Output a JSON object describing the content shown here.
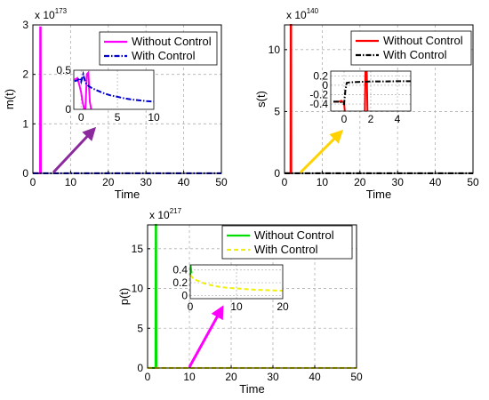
{
  "chart_data": [
    {
      "type": "line",
      "ylabel": "m(t)",
      "xlabel": "Time",
      "exponent": {
        "base": "x 10",
        "power": "173"
      },
      "xlim": [
        0,
        50
      ],
      "ylim": [
        0,
        3
      ],
      "xticks": [
        0,
        10,
        20,
        30,
        40,
        50
      ],
      "yticks": [
        0,
        1,
        2,
        3
      ],
      "grid": true,
      "legend_position": "top-right",
      "series": [
        {
          "name": "Without Control",
          "color": "#ff00ff",
          "style": "solid",
          "x": [
            0,
            1.9,
            1.95,
            2.05,
            2.1
          ],
          "y": [
            0,
            0,
            2.95,
            2.95,
            0
          ]
        },
        {
          "name": "With Control",
          "color": "#0000cc",
          "style": "dashdot",
          "x": [
            0,
            10,
            20,
            30,
            40,
            50
          ],
          "y": [
            0,
            0,
            0,
            0,
            0,
            0
          ]
        }
      ],
      "inset": {
        "xlim": [
          -1,
          10
        ],
        "ylim": [
          0,
          0.5
        ],
        "xticks": [
          0,
          5,
          10
        ],
        "yticks": [
          0,
          0.5
        ],
        "series": [
          {
            "name": "Without Control",
            "color": "#ff00ff",
            "style": "solid",
            "x": [
              -0.9,
              -0.5,
              -0.2,
              0,
              0.2,
              0.4,
              0.6,
              0.8,
              1.0,
              1.2,
              1.4
            ],
            "y": [
              0.38,
              0.4,
              0.3,
              0.22,
              0.1,
              0.01,
              0.01,
              0.45,
              0.47,
              0.1,
              0.0
            ]
          },
          {
            "name": "With Control",
            "color": "#0000cc",
            "style": "dashdot",
            "x": [
              -0.9,
              -0.5,
              -0.2,
              0,
              0.3,
              0.6,
              1,
              1.5,
              2,
              3,
              4,
              5,
              6,
              7,
              8,
              9,
              10
            ],
            "y": [
              0.36,
              0.37,
              0.4,
              0.35,
              0.45,
              0.34,
              0.3,
              0.27,
              0.25,
              0.21,
              0.18,
              0.16,
              0.14,
              0.125,
              0.115,
              0.105,
              0.1
            ]
          }
        ]
      },
      "arrow_color": "#8b2a9c"
    },
    {
      "type": "line",
      "ylabel": "s(t)",
      "xlabel": "Time",
      "exponent": {
        "base": "x 10",
        "power": "140"
      },
      "xlim": [
        0,
        50
      ],
      "ylim": [
        0,
        12
      ],
      "xticks": [
        0,
        10,
        20,
        30,
        40,
        50
      ],
      "yticks": [
        0,
        5,
        10
      ],
      "grid": true,
      "legend_position": "top-right",
      "series": [
        {
          "name": "Without Control",
          "color": "#ff0000",
          "style": "solid",
          "x": [
            0,
            1.6,
            1.65,
            1.75,
            1.8
          ],
          "y": [
            0,
            0,
            12,
            12,
            0
          ]
        },
        {
          "name": "With Control",
          "color": "#000000",
          "style": "dashdot",
          "x": [
            0,
            10,
            20,
            30,
            40,
            50
          ],
          "y": [
            0,
            0,
            0,
            0,
            0,
            0
          ]
        }
      ],
      "inset": {
        "xlim": [
          -1,
          5
        ],
        "ylim": [
          -0.55,
          0.3
        ],
        "xticks": [
          0,
          2,
          4
        ],
        "yticks": [
          0.2,
          0,
          -0.2,
          -0.4
        ],
        "series": [
          {
            "name": "Without Control",
            "color": "#ff0000",
            "style": "solid",
            "x": [
              -0.8,
              -0.4,
              -0.2,
              0,
              0.05
            ],
            "y": [
              -0.35,
              -0.35,
              -0.33,
              -0.38,
              -0.55
            ]
          },
          {
            "name": "Without Control",
            "color": "#ff0000",
            "style": "solid",
            "x": [
              1.55,
              1.6,
              1.65,
              1.7,
              1.75
            ],
            "y": [
              -0.55,
              0.28,
              0.28,
              0.28,
              -0.55
            ]
          },
          {
            "name": "With Control",
            "color": "#000000",
            "style": "dashdot",
            "x": [
              -0.8,
              -0.3,
              0,
              0.1,
              0.2,
              0.4,
              1,
              2,
              3,
              4,
              5
            ],
            "y": [
              -0.35,
              -0.35,
              -0.4,
              -0.1,
              0.05,
              0.06,
              0.07,
              0.08,
              0.08,
              0.085,
              0.085
            ]
          }
        ]
      },
      "arrow_color": "#ffd200"
    },
    {
      "type": "line",
      "ylabel": "p(t)",
      "xlabel": "Time",
      "exponent": {
        "base": "x 10",
        "power": "217"
      },
      "xlim": [
        0,
        50
      ],
      "ylim": [
        0,
        18
      ],
      "xticks": [
        0,
        10,
        20,
        30,
        40,
        50
      ],
      "yticks": [
        0,
        5,
        10,
        15
      ],
      "grid": true,
      "legend_position": "top-right",
      "series": [
        {
          "name": "Without Control",
          "color": "#00e000",
          "style": "solid",
          "x": [
            0,
            1.9,
            1.95,
            2.05,
            2.1
          ],
          "y": [
            0,
            0,
            18,
            18,
            0
          ]
        },
        {
          "name": "With Control",
          "color": "#f0f000",
          "style": "dashed",
          "x": [
            0,
            10,
            20,
            30,
            40,
            50
          ],
          "y": [
            0,
            0,
            0,
            0,
            0,
            0
          ]
        }
      ],
      "inset": {
        "xlim": [
          0,
          20
        ],
        "ylim": [
          -0.05,
          0.48
        ],
        "xticks": [
          0,
          10,
          20
        ],
        "yticks": [
          0,
          0.2,
          0.4
        ],
        "series": [
          {
            "name": "Without Control",
            "color": "#00e000",
            "style": "solid",
            "x": [
              0,
              0.1,
              0.2,
              0.3
            ],
            "y": [
              0.32,
              0.47,
              0.4,
              0.35
            ]
          },
          {
            "name": "With Control",
            "color": "#f0f000",
            "style": "dashed",
            "x": [
              0,
              0.5,
              1,
              2,
              3,
              4,
              6,
              8,
              10,
              12,
              14,
              16,
              18,
              20
            ],
            "y": [
              0.32,
              0.28,
              0.25,
              0.22,
              0.19,
              0.17,
              0.14,
              0.12,
              0.11,
              0.1,
              0.09,
              0.085,
              0.08,
              0.075
            ]
          }
        ]
      },
      "arrow_color": "#ff00ff"
    }
  ]
}
